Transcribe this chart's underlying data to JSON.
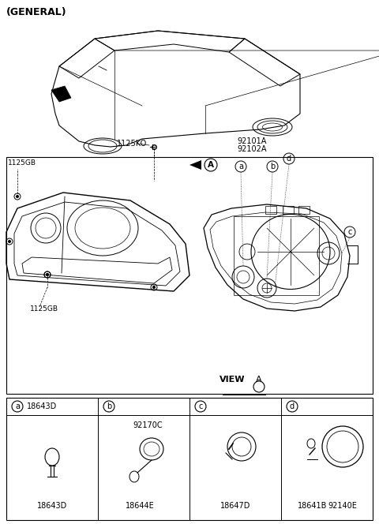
{
  "title": "(GENERAL)",
  "bg_color": "#ffffff",
  "text_color": "#000000",
  "line_color": "#000000",
  "part_labels": {
    "main_part_1": "92101A",
    "main_part_2": "92102A",
    "screw1": "1125KO",
    "bolt1": "1125GB",
    "bolt2": "1125GB",
    "view_label": "VIEW",
    "view_circle": "A",
    "arrow_circle": "A"
  },
  "component_labels": {
    "a": "18643D",
    "b_top": "92170C",
    "b_bottom": "18644E",
    "c": "18647D",
    "d_left": "18641B",
    "d_right": "92140E"
  },
  "font_size_title": 9,
  "font_size_label": 7,
  "font_size_part": 7
}
